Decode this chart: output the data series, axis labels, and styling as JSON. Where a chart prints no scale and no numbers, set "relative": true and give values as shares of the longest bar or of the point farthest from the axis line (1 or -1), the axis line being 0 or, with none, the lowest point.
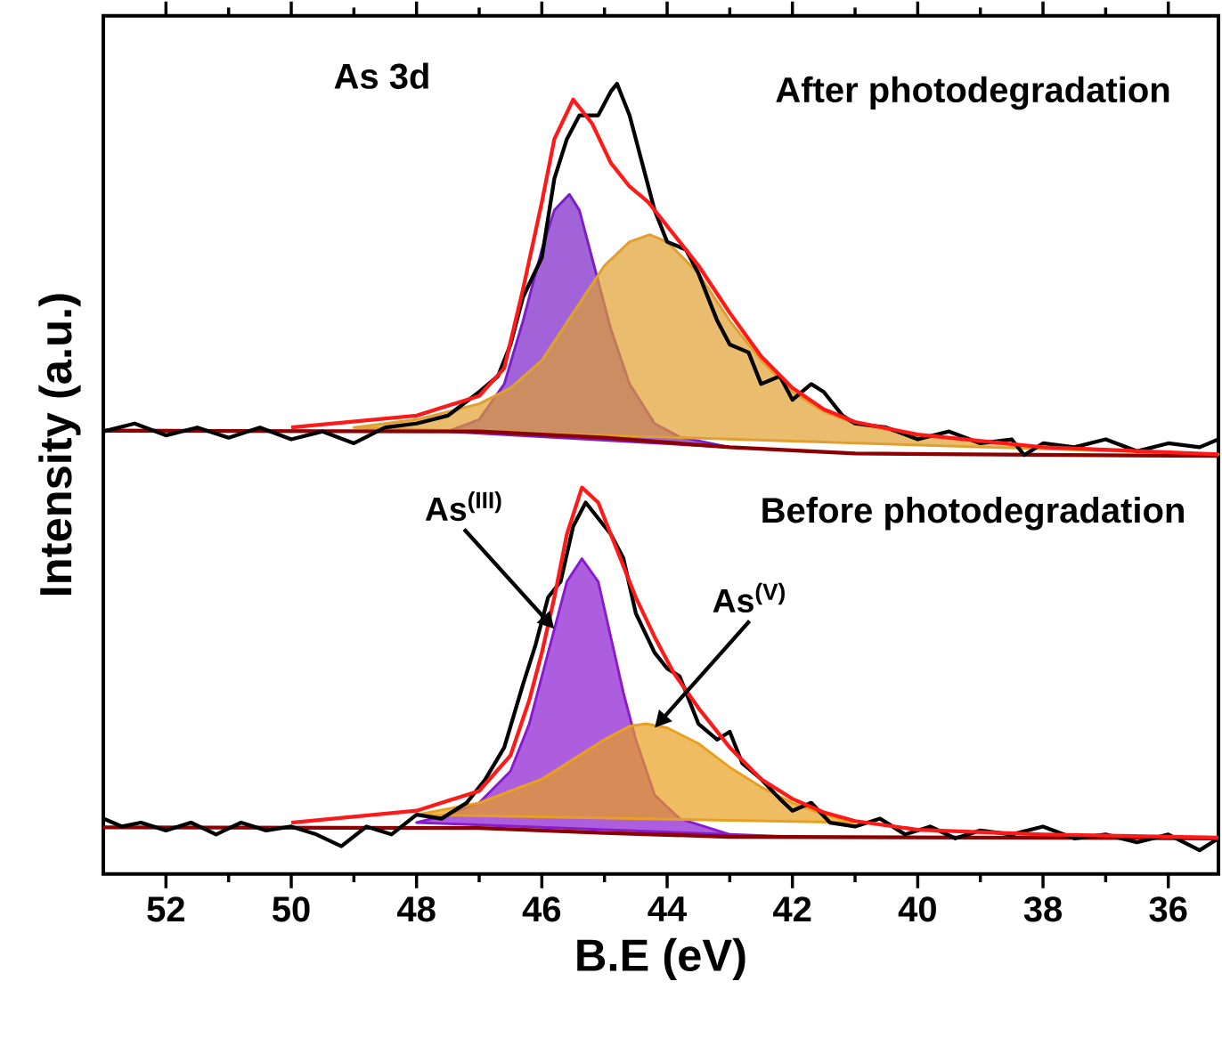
{
  "chart_data": {
    "type": "line",
    "relative": true,
    "xlabel": "B.E (eV)",
    "ylabel": "Intensity (a.u.)",
    "xlim": [
      53,
      35.2
    ],
    "xticks": [
      52,
      50,
      48,
      46,
      44,
      42,
      40,
      38,
      36
    ],
    "grid": false,
    "annotations": [
      "As 3d",
      "After photodegradation",
      "Before photodegradation",
      {
        "text": "As$^{(III)}$",
        "x": 45.8,
        "y": 0.31
      },
      {
        "text": "As$^{(V)}$",
        "x": 44.2,
        "y": 0.185
      }
    ],
    "series": [
      {
        "type": "area",
        "color": "#7a1fc8",
        "x": [
          47.5,
          47,
          46.6,
          46.3,
          46,
          45.8,
          45.56,
          45.4,
          45.2,
          44.9,
          44.6,
          44.2,
          43.8,
          43
        ],
        "values": [
          0.56,
          0.575,
          0.62,
          0.7,
          0.79,
          0.84,
          0.86,
          0.84,
          0.78,
          0.69,
          0.62,
          0.57,
          0.553,
          0.54
        ]
      },
      {
        "type": "area",
        "color": "#e0a030",
        "x": [
          49,
          48,
          47,
          46.5,
          46,
          45,
          44.6,
          44.28,
          44,
          43.5,
          43,
          42.5,
          42,
          41.5,
          41,
          40,
          38,
          35.2
        ],
        "values": [
          0.565,
          0.575,
          0.595,
          0.615,
          0.65,
          0.77,
          0.8,
          0.809,
          0.8,
          0.76,
          0.7,
          0.65,
          0.61,
          0.585,
          0.57,
          0.555,
          0.54,
          0.531
        ]
      },
      {
        "color": "#8b0000",
        "x": [
          53,
          47,
          45,
          43,
          41,
          35.2
        ],
        "values": [
          0.561,
          0.56,
          0.552,
          0.54,
          0.532,
          0.529
        ]
      },
      {
        "color": "#000000",
        "x": [
          53,
          52.5,
          52,
          51.5,
          51,
          50.5,
          50,
          49.5,
          49,
          48.5,
          48,
          47.5,
          47,
          46.7,
          46.5,
          46.3,
          46,
          45.8,
          45.6,
          45.4,
          45.1,
          44.9,
          44.8,
          44.6,
          44.4,
          44.2,
          44,
          43.7,
          43.5,
          43.2,
          43,
          42.7,
          42.5,
          42.2,
          42,
          41.7,
          41.5,
          41.2,
          41,
          40.5,
          40,
          39.5,
          39,
          38.5,
          38.3,
          38,
          37.5,
          37,
          36.5,
          36,
          35.5,
          35.2
        ],
        "values": [
          0.56,
          0.57,
          0.555,
          0.565,
          0.552,
          0.565,
          0.55,
          0.56,
          0.545,
          0.565,
          0.57,
          0.58,
          0.61,
          0.63,
          0.67,
          0.73,
          0.78,
          0.88,
          0.93,
          0.96,
          0.96,
          0.99,
          1,
          0.96,
          0.9,
          0.84,
          0.8,
          0.79,
          0.76,
          0.7,
          0.67,
          0.66,
          0.62,
          0.63,
          0.6,
          0.62,
          0.61,
          0.58,
          0.57,
          0.565,
          0.55,
          0.56,
          0.545,
          0.55,
          0.53,
          0.545,
          0.54,
          0.55,
          0.535,
          0.545,
          0.54,
          0.55
        ]
      },
      {
        "color": "#ff1a1a",
        "x": [
          50,
          48,
          47,
          46.6,
          46.3,
          46,
          45.8,
          45.5,
          45.2,
          44.9,
          44.6,
          44.3,
          44,
          43.5,
          43,
          42.5,
          42,
          41.5,
          41,
          40,
          38,
          35.2
        ],
        "values": [
          0.565,
          0.58,
          0.605,
          0.64,
          0.74,
          0.85,
          0.93,
          0.98,
          0.95,
          0.9,
          0.87,
          0.85,
          0.82,
          0.77,
          0.71,
          0.655,
          0.615,
          0.588,
          0.572,
          0.556,
          0.54,
          0.531
        ]
      },
      {
        "type": "area",
        "color": "#8a1ad0",
        "x": [
          48,
          47.5,
          47,
          46.5,
          46.2,
          46,
          45.8,
          45.6,
          45.36,
          45.1,
          44.9,
          44.7,
          44.5,
          44.2,
          43.8,
          43,
          42
        ],
        "values": [
          0.065,
          0.075,
          0.09,
          0.13,
          0.19,
          0.25,
          0.31,
          0.37,
          0.399,
          0.37,
          0.3,
          0.23,
          0.17,
          0.1,
          0.07,
          0.05,
          0.047
        ]
      },
      {
        "type": "area",
        "color": "#e8a020",
        "x": [
          48,
          47,
          46,
          45.5,
          45,
          44.6,
          44.34,
          44,
          43.5,
          43,
          42.5,
          42,
          41.5,
          41
        ],
        "values": [
          0.075,
          0.09,
          0.12,
          0.145,
          0.17,
          0.187,
          0.19,
          0.185,
          0.165,
          0.135,
          0.11,
          0.09,
          0.075,
          0.065
        ]
      },
      {
        "color": "#8b0000",
        "x": [
          53,
          47,
          45,
          43,
          35.2
        ],
        "values": [
          0.059,
          0.058,
          0.052,
          0.047,
          0.045
        ]
      },
      {
        "color": "#000000",
        "x": [
          53,
          52.7,
          52.4,
          52,
          51.6,
          51.2,
          50.8,
          50.4,
          50,
          49.6,
          49.2,
          48.8,
          48.4,
          48,
          47.6,
          47.2,
          46.9,
          46.6,
          46.3,
          46.1,
          45.9,
          45.7,
          45.5,
          45.3,
          45.1,
          44.9,
          44.7,
          44.5,
          44.2,
          44,
          43.8,
          43.5,
          43.2,
          43,
          42.8,
          42.5,
          42.2,
          42,
          41.7,
          41.4,
          41,
          40.6,
          40.2,
          39.8,
          39.4,
          39,
          38.5,
          38,
          37.5,
          37,
          36.5,
          36,
          35.5,
          35.2
        ],
        "values": [
          0.07,
          0.06,
          0.065,
          0.055,
          0.065,
          0.05,
          0.065,
          0.055,
          0.06,
          0.05,
          0.035,
          0.06,
          0.05,
          0.075,
          0.07,
          0.09,
          0.12,
          0.16,
          0.24,
          0.29,
          0.35,
          0.37,
          0.44,
          0.47,
          0.45,
          0.43,
          0.4,
          0.33,
          0.28,
          0.26,
          0.25,
          0.19,
          0.17,
          0.18,
          0.14,
          0.12,
          0.095,
          0.08,
          0.09,
          0.065,
          0.06,
          0.07,
          0.05,
          0.06,
          0.045,
          0.055,
          0.05,
          0.06,
          0.045,
          0.05,
          0.04,
          0.05,
          0.03,
          0.045
        ]
      },
      {
        "color": "#ff1a1a",
        "x": [
          50,
          48,
          47,
          46.5,
          46.2,
          46,
          45.8,
          45.6,
          45.36,
          45.1,
          44.8,
          44.5,
          44.2,
          43.9,
          43.5,
          43,
          42.5,
          42,
          41.5,
          41,
          40,
          38,
          35.2
        ],
        "values": [
          0.065,
          0.08,
          0.105,
          0.15,
          0.22,
          0.28,
          0.35,
          0.43,
          0.489,
          0.47,
          0.41,
          0.35,
          0.3,
          0.255,
          0.21,
          0.16,
          0.12,
          0.095,
          0.078,
          0.067,
          0.056,
          0.05,
          0.046
        ]
      }
    ]
  }
}
